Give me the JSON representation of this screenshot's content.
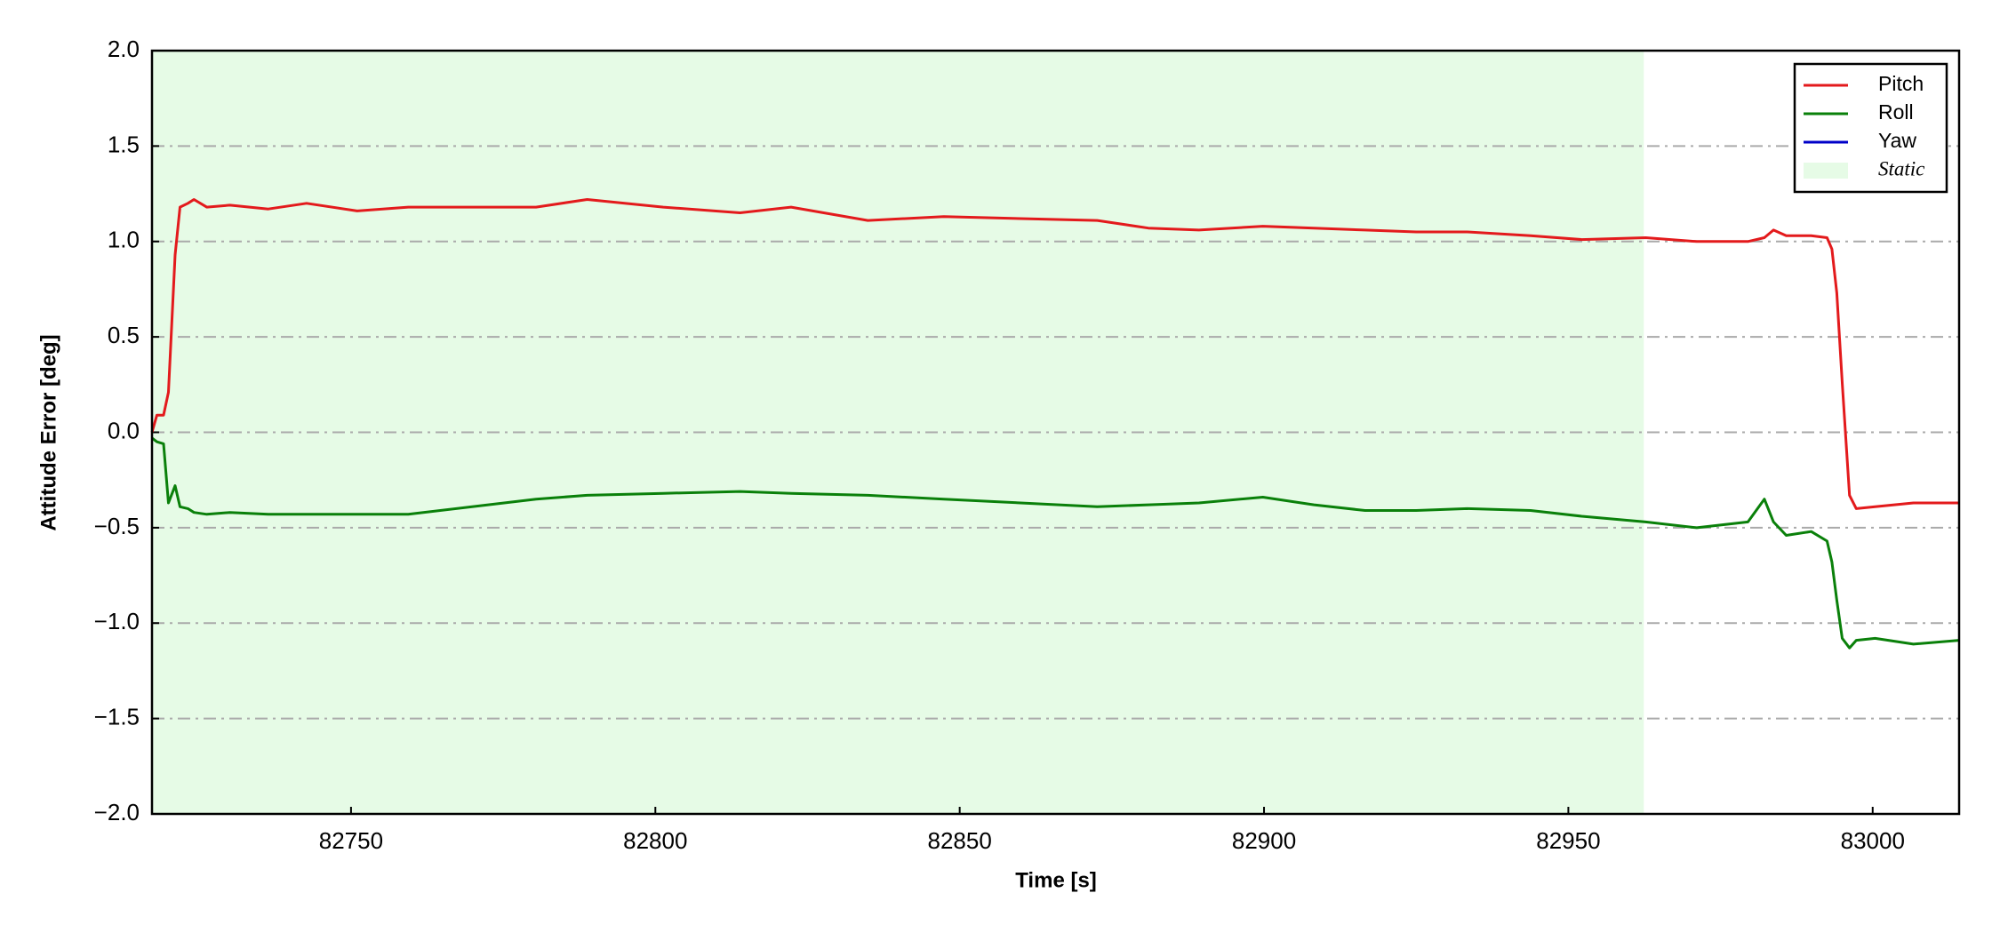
{
  "chart_data": {
    "type": "line",
    "xlabel": "Time [s]",
    "ylabel": "Attitude Error [deg]",
    "x": [
      82717.3,
      82718.1,
      82719.2,
      82720.0,
      82721.1,
      82721.9,
      82723.2,
      82724.2,
      82726.3,
      82730.1,
      82736.4,
      82742.7,
      82751.0,
      82759.4,
      82769.9,
      82780.4,
      82788.8,
      82801.3,
      82813.9,
      82822.3,
      82834.9,
      82847.4,
      82860.0,
      82872.6,
      82881.0,
      82889.3,
      82899.8,
      82908.2,
      82916.6,
      82925.0,
      82933.4,
      82943.8,
      82952.2,
      82962.7,
      82971.1,
      82979.5,
      82982.2,
      82983.7,
      82985.8,
      82989.9,
      82992.5,
      82993.3,
      82994.1,
      82995.0,
      82996.2,
      82997.3,
      83000.4,
      83006.7,
      83014.2
    ],
    "series": [
      {
        "name": "Pitch",
        "color": "#e31a1c",
        "values": [
          0.0,
          0.09,
          0.09,
          0.21,
          0.93,
          1.18,
          1.2,
          1.22,
          1.18,
          1.19,
          1.17,
          1.2,
          1.16,
          1.18,
          1.18,
          1.18,
          1.22,
          1.18,
          1.15,
          1.18,
          1.11,
          1.13,
          1.12,
          1.11,
          1.07,
          1.06,
          1.08,
          1.07,
          1.06,
          1.05,
          1.05,
          1.03,
          1.01,
          1.02,
          1.0,
          1.0,
          1.02,
          1.06,
          1.03,
          1.03,
          1.02,
          0.96,
          0.73,
          0.26,
          -0.33,
          -0.4,
          -0.39,
          -0.37,
          -0.37
        ]
      },
      {
        "name": "Roll",
        "color": "#0a800a",
        "values": [
          -0.03,
          -0.05,
          -0.06,
          -0.37,
          -0.28,
          -0.39,
          -0.4,
          -0.42,
          -0.43,
          -0.42,
          -0.43,
          -0.43,
          -0.43,
          -0.43,
          -0.39,
          -0.35,
          -0.33,
          -0.32,
          -0.31,
          -0.32,
          -0.33,
          -0.35,
          -0.37,
          -0.39,
          -0.38,
          -0.37,
          -0.34,
          -0.38,
          -0.41,
          -0.41,
          -0.4,
          -0.41,
          -0.44,
          -0.47,
          -0.5,
          -0.47,
          -0.35,
          -0.47,
          -0.54,
          -0.52,
          -0.57,
          -0.68,
          -0.88,
          -1.08,
          -1.13,
          -1.09,
          -1.08,
          -1.11,
          -1.09
        ]
      },
      {
        "name": "Yaw",
        "color": "#0000c8",
        "values": [
          null,
          null,
          null,
          null,
          null,
          null,
          null,
          null,
          null,
          null,
          null,
          null,
          null,
          null,
          null,
          null,
          null,
          null,
          null,
          null,
          null,
          null,
          null,
          null,
          null,
          null,
          null,
          null,
          null,
          null,
          null,
          null,
          null,
          null,
          null,
          null,
          null,
          null,
          null,
          null,
          null,
          null,
          null,
          null,
          null,
          null,
          null,
          null,
          null
        ]
      }
    ],
    "spans": [
      {
        "name": "Static",
        "color": "#e6fbe6",
        "xstart": 82717.3,
        "xend": 82962.4
      }
    ],
    "xlim": [
      82717.3,
      83014.2
    ],
    "xticks": [
      82750,
      82800,
      82850,
      82900,
      82950,
      83000
    ],
    "ylim": [
      -2.0,
      2.0
    ],
    "yticks": [
      {
        "value": -2.0,
        "label": "−2.0"
      },
      {
        "value": -1.5,
        "label": "−1.5"
      },
      {
        "value": -1.0,
        "label": "−1.0"
      },
      {
        "value": -0.5,
        "label": "−0.5"
      },
      {
        "value": 0.0,
        "label": "0.0"
      },
      0.5,
      {
        "value": 1.0,
        "label": "1.0"
      },
      1.5,
      {
        "value": 2.0,
        "label": "2.0"
      }
    ],
    "grid": true,
    "grid_color": "#aaaaaa",
    "legend": "upper right"
  }
}
